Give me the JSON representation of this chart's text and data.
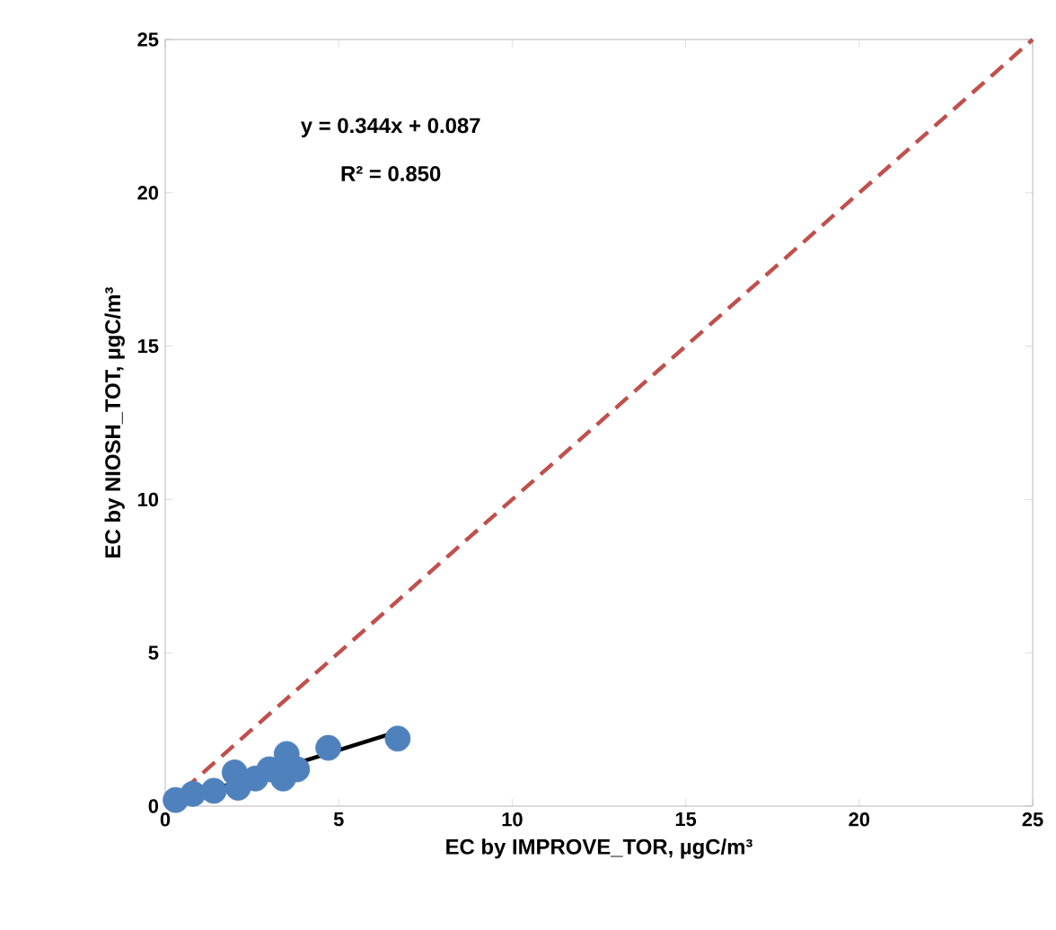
{
  "chart_data": {
    "type": "scatter",
    "xlabel": "EC by IMPROVE_TOR, µgC/m³",
    "ylabel": "EC by NIOSH_TOT, µgC/m³",
    "annotations": [
      "y = 0.344x + 0.087",
      "R² = 0.850"
    ],
    "series": [
      {
        "color": "#4f81bd",
        "marker": "circle",
        "x": [
          0.3,
          0.8,
          1.4,
          2.0,
          2.1,
          2.6,
          3.0,
          3.4,
          3.5,
          3.8,
          4.7,
          6.7
        ],
        "values": [
          0.2,
          0.4,
          0.5,
          1.1,
          0.6,
          0.9,
          1.2,
          0.9,
          1.7,
          1.2,
          1.9,
          2.2
        ]
      },
      {
        "type": "line",
        "color": "#000000",
        "line_style": "solid",
        "marker": "none",
        "x": [
          0.4,
          6.9
        ],
        "values": [
          0.2,
          2.5
        ]
      },
      {
        "type": "line",
        "color": "#c0504d",
        "line_style": "dashed",
        "marker": "none",
        "x": [
          0,
          25
        ],
        "values": [
          0,
          25
        ]
      }
    ],
    "xlim": [
      0,
      25
    ],
    "ylim": [
      0,
      25
    ],
    "xticks": [
      0,
      5,
      10,
      15,
      20,
      25
    ],
    "yticks": [
      0,
      5,
      10,
      15,
      20,
      25
    ],
    "grid": false
  }
}
